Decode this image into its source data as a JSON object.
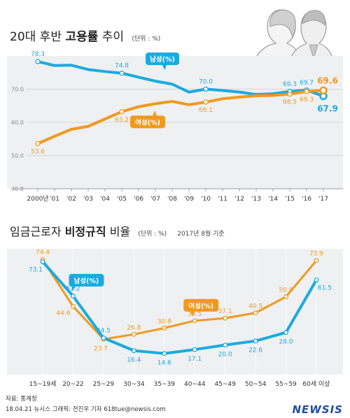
{
  "chart1": {
    "title_light": "20대 후반",
    "title_bold": "고용률",
    "title_tail": "추이",
    "unit": "(단위 : %)"
  },
  "chart2": {
    "title_light": "임금근로자",
    "title_bold": "비정규직",
    "title_tail": "비율",
    "unit": "(단위 : %)",
    "note": "2017년 8월 기준"
  },
  "footer": {
    "source": "자료: 통계청",
    "credit": "18.04.21 뉴시스 그래픽: 전진우 기자 618tue@newsis.com",
    "logo": "NEWSIS"
  },
  "colors": {
    "male": "#1aaae0",
    "female": "#f0991e",
    "bg_band": "#eef0f2",
    "grid": "#cfcfcf"
  },
  "chart_data": [
    {
      "type": "line",
      "categories": [
        "2000년",
        "'01",
        "'02",
        "'03",
        "'04",
        "'05",
        "'06",
        "'07",
        "'08",
        "'09",
        "'10",
        "'11",
        "'12",
        "'13",
        "'14",
        "'15",
        "'16",
        "'17"
      ],
      "ylim": [
        40,
        80
      ],
      "y_ticks": [
        "40.0",
        "50.0",
        "60.0",
        "70.0"
      ],
      "grid": true,
      "series": [
        {
          "name": "남성(%)",
          "values": [
            78.3,
            77.1,
            77.2,
            75.9,
            75.3,
            74.8,
            73.6,
            72.4,
            71.5,
            69.1,
            70.0,
            69.6,
            69.1,
            68.4,
            68.6,
            69.3,
            69.7,
            67.9
          ],
          "labels": {
            "0": "78.3",
            "5": "74.8",
            "10": "70.0",
            "15": "69.3",
            "16": "69.7",
            "17": "67.9"
          }
        },
        {
          "name": "여성(%)",
          "values": [
            53.6,
            55.8,
            57.9,
            58.8,
            61.0,
            63.2,
            64.7,
            65.6,
            66.3,
            65.3,
            66.1,
            67.1,
            67.6,
            68.0,
            68.1,
            68.5,
            69.3,
            69.6
          ],
          "labels": {
            "0": "53.6",
            "5": "63.2",
            "10": "66.1",
            "15": "68.5",
            "16": "69.3",
            "17": "69.6"
          }
        }
      ]
    },
    {
      "type": "line",
      "categories": [
        "15~19세",
        "20~22",
        "25~29",
        "30~34",
        "35~39",
        "40~44",
        "45~49",
        "50~54",
        "55~59",
        "60세 이상"
      ],
      "grid": false,
      "series": [
        {
          "name": "남성(%)",
          "values": [
            73.1,
            51.2,
            24.5,
            16.4,
            14.6,
            17.1,
            20.0,
            22.6,
            28.0,
            61.5
          ],
          "labels": [
            "73.1",
            "51.2",
            "24.5",
            "16.4",
            "14.6",
            "17.1",
            "20.0",
            "22.6",
            "28.0",
            "61.5"
          ]
        },
        {
          "name": "여성(%)",
          "values": [
            74.4,
            44.6,
            23.7,
            26.8,
            30.8,
            35.5,
            37.1,
            40.5,
            50.8,
            73.9
          ],
          "labels": [
            "74.4",
            "44.6",
            "23.7",
            "26.8",
            "30.8",
            "35.5",
            "37.1",
            "40.5",
            "50.8",
            "73.9"
          ]
        }
      ]
    }
  ]
}
